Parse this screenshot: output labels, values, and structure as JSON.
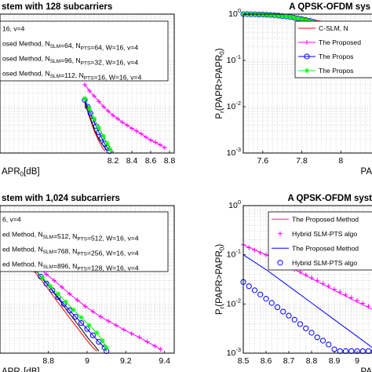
{
  "chart_data": [
    {
      "type": "line",
      "title": "stem with 128 subcarriers",
      "xlabel": "APR₀[dB]",
      "ylabel": "",
      "xlim": [
        7.0,
        8.85
      ],
      "ylim": [
        0.001,
        1
      ],
      "yscale": "log",
      "xticks": [
        "8.2",
        "8.4",
        "8.6",
        "8.8"
      ],
      "yticks": [],
      "grid": true,
      "legend_position": "top-left",
      "legend": [
        {
          "text": "16, v=4",
          "line": false
        },
        {
          "text": "osed Method, N_SLM=64, N_PTS=64, W=16, v=4",
          "color": "#ff00ff",
          "marker": "plus"
        },
        {
          "text": "osed Method, N_SLM=96, N_PTS=32, W=16, v=4",
          "color": "#0000ff",
          "marker": "circle"
        },
        {
          "text": "osed Method, N_SLM=112, N_PTS=16, W=16, v=4",
          "color": "#00ff00",
          "marker": "star"
        }
      ],
      "series": [
        {
          "color": "#ff00ff",
          "marker": "plus",
          "x": [
            7.9,
            7.95,
            8.0,
            8.05,
            8.1,
            8.15,
            8.2,
            8.25,
            8.3,
            8.35,
            8.4,
            8.45,
            8.5,
            8.55,
            8.6,
            8.65,
            8.7,
            8.75
          ],
          "y": [
            0.03,
            0.022,
            0.017,
            0.013,
            0.01,
            0.008,
            0.0065,
            0.0055,
            0.0046,
            0.004,
            0.0034,
            0.003,
            0.0026,
            0.0022,
            0.0019,
            0.0017,
            0.0015,
            0.0013
          ]
        },
        {
          "color": "#ff0000",
          "marker": "none",
          "x": [
            7.9,
            7.95,
            8.0,
            8.05,
            8.08,
            8.1,
            8.12
          ],
          "y": [
            0.012,
            0.006,
            0.003,
            0.0018,
            0.0014,
            0.0012,
            0.0011
          ]
        },
        {
          "color": "#000000",
          "marker": "none",
          "x": [
            7.9,
            7.95,
            8.0,
            8.05,
            8.1,
            8.13
          ],
          "y": [
            0.013,
            0.0065,
            0.0033,
            0.002,
            0.0014,
            0.0012
          ]
        },
        {
          "color": "#0000ff",
          "marker": "circle",
          "x": [
            7.9,
            7.93,
            7.96,
            7.99,
            8.02,
            8.05,
            8.08,
            8.11,
            8.14,
            8.16
          ],
          "y": [
            0.014,
            0.01,
            0.0072,
            0.0052,
            0.0038,
            0.0028,
            0.0021,
            0.0016,
            0.0013,
            0.0011
          ]
        },
        {
          "color": "#00ff00",
          "marker": "star",
          "x": [
            7.9,
            7.95,
            8.0,
            8.05,
            8.1,
            8.14,
            8.17
          ],
          "y": [
            0.015,
            0.009,
            0.0055,
            0.0035,
            0.0023,
            0.0016,
            0.0012
          ]
        }
      ]
    },
    {
      "type": "line",
      "title": "A QPSK-OFDM sys",
      "xlabel": "PA",
      "ylabel": "Pr(PAPR>PAPR₀)",
      "xlim": [
        7.5,
        8.2
      ],
      "ylim": [
        0.001,
        1
      ],
      "yscale": "log",
      "xticks": [
        "7.6",
        "7.8",
        "8"
      ],
      "yticks": [
        "10⁰",
        "10⁻¹",
        "10⁻²",
        "10⁻³"
      ],
      "grid": true,
      "legend_position": "top-right",
      "legend": [
        {
          "text": "C-SLM, N",
          "color": "#ff0000",
          "marker": "none"
        },
        {
          "text": "The Proposed",
          "color": "#ff00ff",
          "marker": "plus"
        },
        {
          "text": "The Propos",
          "color": "#0000ff",
          "marker": "circle"
        },
        {
          "text": "The Propos",
          "color": "#00ff00",
          "marker": "star"
        }
      ],
      "series": [
        {
          "color": "#ff0000",
          "marker": "none",
          "x": [
            7.5,
            7.6,
            7.7,
            7.8,
            7.9,
            8.0
          ],
          "y": [
            1.0,
            0.98,
            0.92,
            0.83,
            0.7,
            0.55
          ]
        },
        {
          "color": "#ff00ff",
          "marker": "plus",
          "x": [
            7.5,
            7.52,
            7.54,
            7.56,
            7.58,
            7.6,
            7.62,
            7.64,
            7.66,
            7.68,
            7.7,
            7.72,
            7.74,
            7.76,
            7.78,
            7.8,
            7.82,
            7.84,
            7.86
          ],
          "y": [
            1.0,
            1.0,
            0.99,
            0.99,
            0.98,
            0.98,
            0.97,
            0.96,
            0.95,
            0.93,
            0.91,
            0.89,
            0.87,
            0.84,
            0.81,
            0.78,
            0.75,
            0.72,
            0.68
          ]
        },
        {
          "color": "#0000ff",
          "marker": "circle",
          "x": [
            7.5,
            7.52,
            7.54,
            7.56,
            7.58,
            7.6,
            7.62,
            7.64,
            7.66,
            7.68,
            7.7,
            7.72,
            7.74,
            7.76,
            7.78,
            7.8,
            7.82,
            7.84,
            7.86
          ],
          "y": [
            1.0,
            1.0,
            0.99,
            0.99,
            0.98,
            0.98,
            0.97,
            0.96,
            0.95,
            0.93,
            0.91,
            0.89,
            0.87,
            0.84,
            0.81,
            0.78,
            0.75,
            0.72,
            0.68
          ]
        },
        {
          "color": "#00ff00",
          "marker": "star",
          "x": [
            7.5,
            7.52,
            7.54,
            7.56,
            7.58,
            7.6,
            7.62,
            7.64,
            7.66,
            7.68,
            7.7,
            7.72,
            7.74,
            7.76,
            7.78,
            7.8,
            7.82,
            7.84,
            7.86
          ],
          "y": [
            1.0,
            1.0,
            0.99,
            0.99,
            0.98,
            0.98,
            0.97,
            0.96,
            0.95,
            0.93,
            0.91,
            0.89,
            0.87,
            0.84,
            0.81,
            0.78,
            0.75,
            0.72,
            0.68
          ]
        }
      ]
    },
    {
      "type": "line",
      "title": "stem with 1,024 subcarriers",
      "xlabel": "APR₀[dB]",
      "ylabel": "",
      "xlim": [
        8.55,
        9.45
      ],
      "ylim": [
        0.001,
        1
      ],
      "yscale": "log",
      "xticks": [
        "8.8",
        "9",
        "9.2",
        "9.4"
      ],
      "yticks": [],
      "grid": true,
      "legend_position": "top-left",
      "legend": [
        {
          "text": "6, v=4",
          "line": false
        },
        {
          "text": "ed Method, N_SLM=512, N_PTS=512, W=16, v=4",
          "color": "#ff00ff",
          "marker": "plus"
        },
        {
          "text": "ed Method, N_SLM=768, N_PTS=256, W=16, v=4",
          "color": "#0000ff",
          "marker": "circle"
        },
        {
          "text": "ed Method, N_SLM=896, N_PTS=128, W=16, v=4",
          "color": "#00ff00",
          "marker": "star"
        }
      ],
      "series": [
        {
          "color": "#ff00ff",
          "marker": "plus",
          "x": [
            8.75,
            8.79,
            8.83,
            8.87,
            8.91,
            8.95,
            8.99,
            9.03,
            9.07,
            9.11,
            9.15,
            9.19,
            9.23,
            9.27,
            9.31,
            9.35,
            9.38
          ],
          "y": [
            0.055,
            0.04,
            0.03,
            0.022,
            0.016,
            0.012,
            0.009,
            0.007,
            0.0055,
            0.0045,
            0.0037,
            0.003,
            0.0025,
            0.0021,
            0.0017,
            0.0014,
            0.0012
          ]
        },
        {
          "color": "#ff0000",
          "marker": "none",
          "x": [
            8.72,
            8.76,
            8.8,
            8.84,
            8.88,
            8.92,
            8.96,
            9.0,
            9.03,
            9.05
          ],
          "y": [
            0.05,
            0.032,
            0.02,
            0.012,
            0.0075,
            0.0046,
            0.0029,
            0.0018,
            0.0013,
            0.0011
          ]
        },
        {
          "color": "#000000",
          "marker": "none",
          "x": [
            8.73,
            8.77,
            8.81,
            8.85,
            8.89,
            8.93,
            8.97,
            9.01,
            9.04,
            9.06
          ],
          "y": [
            0.052,
            0.033,
            0.021,
            0.013,
            0.008,
            0.005,
            0.0031,
            0.0019,
            0.0014,
            0.0011
          ]
        },
        {
          "color": "#0000ff",
          "marker": "circle",
          "x": [
            8.73,
            8.76,
            8.79,
            8.82,
            8.85,
            8.88,
            8.91,
            8.94,
            8.97,
            9.0,
            9.03,
            9.06,
            9.09,
            9.1
          ],
          "y": [
            0.05,
            0.036,
            0.026,
            0.019,
            0.0138,
            0.01,
            0.0074,
            0.0055,
            0.0041,
            0.0031,
            0.0023,
            0.0017,
            0.0013,
            0.0011
          ]
        },
        {
          "color": "#00ff00",
          "marker": "star",
          "x": [
            8.73,
            8.77,
            8.81,
            8.85,
            8.89,
            8.93,
            8.97,
            9.01,
            9.05,
            9.08,
            9.1
          ],
          "y": [
            0.05,
            0.034,
            0.023,
            0.016,
            0.011,
            0.0076,
            0.0053,
            0.0037,
            0.0026,
            0.0018,
            0.0013
          ]
        }
      ]
    },
    {
      "type": "line",
      "title": "A QPSK-OFDM syst",
      "xlabel": "PA",
      "ylabel": "Pr(PAPR>PAPR₀)",
      "xlim": [
        8.5,
        9.1
      ],
      "ylim": [
        0.001,
        1
      ],
      "yscale": "log",
      "xticks": [
        "8.5",
        "8.6",
        "8.7",
        "8.8",
        "8.9",
        "9"
      ],
      "yticks": [
        "10⁰",
        "10⁻¹",
        "10⁻²",
        "10⁻³"
      ],
      "grid": true,
      "legend_position": "top-right",
      "legend": [
        {
          "text": "The Proposed Method",
          "color": "#ff00ff",
          "marker": "none"
        },
        {
          "text": "Hybrid SLM-PTS algo",
          "color": "#ff00ff",
          "marker": "plus",
          "line": false
        },
        {
          "text": "The Proposed Method",
          "color": "#0000ff",
          "marker": "none"
        },
        {
          "text": "Hybrid SLM-PTS algo",
          "color": "#0000ff",
          "marker": "circle",
          "line": false
        }
      ],
      "series": [
        {
          "color": "#ff00ff",
          "marker": "none",
          "x": [
            8.5,
            8.6,
            8.7,
            8.8,
            8.9,
            9.0,
            9.1
          ],
          "y": [
            0.16,
            0.1,
            0.058,
            0.033,
            0.019,
            0.011,
            0.0065
          ]
        },
        {
          "color": "#ff00ff",
          "marker": "plus",
          "x": [
            8.5,
            8.525,
            8.55,
            8.575,
            8.6,
            8.625,
            8.65,
            8.675,
            8.7,
            8.725,
            8.75,
            8.775,
            8.8,
            8.825,
            8.85,
            8.875,
            8.9,
            8.925,
            8.95,
            8.975,
            9.0,
            9.025,
            9.05,
            9.075,
            9.1
          ],
          "y": [
            0.16,
            0.14,
            0.125,
            0.11,
            0.1,
            0.088,
            0.077,
            0.067,
            0.058,
            0.051,
            0.045,
            0.039,
            0.034,
            0.03,
            0.026,
            0.023,
            0.02,
            0.0175,
            0.0153,
            0.0135,
            0.0118,
            0.0103,
            0.009,
            0.0079,
            0.0069
          ]
        },
        {
          "color": "#0000ff",
          "marker": "none",
          "x": [
            8.5,
            8.6,
            8.7,
            8.8,
            8.9,
            9.0,
            9.1
          ],
          "y": [
            0.1,
            0.05,
            0.023,
            0.0105,
            0.0048,
            0.0022,
            0.001
          ]
        },
        {
          "color": "#0000ff",
          "marker": "circle",
          "x": [
            8.5,
            8.525,
            8.55,
            8.575,
            8.6,
            8.625,
            8.65,
            8.675,
            8.7,
            8.725,
            8.75,
            8.775,
            8.8,
            8.825,
            8.85,
            8.875,
            8.9,
            8.925,
            8.95,
            8.975,
            9.0,
            9.025,
            9.05,
            9.075,
            9.1
          ],
          "y": [
            0.028,
            0.023,
            0.019,
            0.0156,
            0.0128,
            0.0105,
            0.0086,
            0.007,
            0.0058,
            0.0048,
            0.0039,
            0.0032,
            0.0026,
            0.0021,
            0.0018,
            0.0015,
            0.0012,
            0.0011,
            0.0011,
            0.0011,
            0.0011,
            0.0011,
            0.0011,
            0.0011,
            0.0011
          ]
        },
        {
          "color": "#0000ff",
          "marker": "none",
          "x": [
            8.5,
            8.6,
            8.7,
            8.8,
            8.9,
            9.0,
            9.1
          ],
          "y": [
            0.0012,
            0.0012,
            0.0012,
            0.0012,
            0.0012,
            0.0012,
            0.0012
          ],
          "hidden": true
        }
      ]
    }
  ]
}
